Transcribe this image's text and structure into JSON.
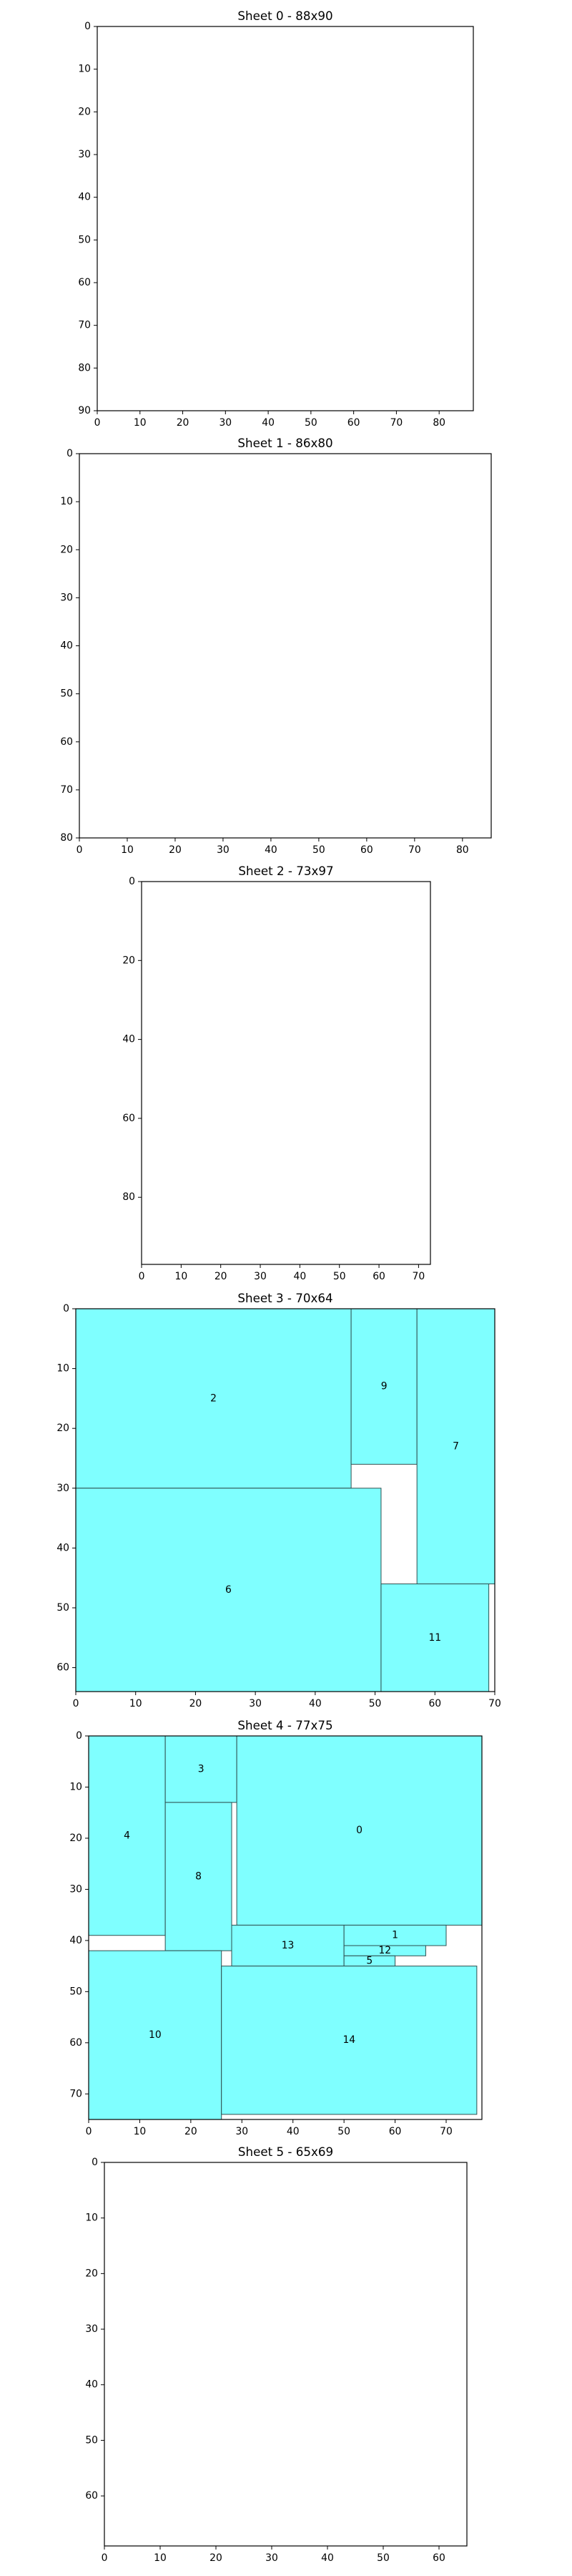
{
  "chart_data": [
    {
      "type": "sheet-packing",
      "title": "Sheet 0 - 88x90",
      "width": 88,
      "height": 90,
      "xlim": [
        0,
        88
      ],
      "ylim": [
        90,
        0
      ],
      "xticks": [
        "0",
        "10",
        "20",
        "30",
        "40",
        "50",
        "60",
        "70",
        "80"
      ],
      "yticks": [
        "0",
        "10",
        "20",
        "30",
        "40",
        "50",
        "60",
        "70",
        "80",
        "90"
      ],
      "pieces": []
    },
    {
      "type": "sheet-packing",
      "title": "Sheet 1 - 86x80",
      "width": 86,
      "height": 80,
      "xlim": [
        0,
        86
      ],
      "ylim": [
        80,
        0
      ],
      "xticks": [
        "0",
        "10",
        "20",
        "30",
        "40",
        "50",
        "60",
        "70",
        "80"
      ],
      "yticks": [
        "0",
        "10",
        "20",
        "30",
        "40",
        "50",
        "60",
        "70",
        "80"
      ],
      "pieces": []
    },
    {
      "type": "sheet-packing",
      "title": "Sheet 2 - 73x97",
      "width": 73,
      "height": 97,
      "xlim": [
        0,
        73
      ],
      "ylim": [
        97,
        0
      ],
      "xticks": [
        "0",
        "10",
        "20",
        "30",
        "40",
        "50",
        "60",
        "70"
      ],
      "yticks": [
        "0",
        "20",
        "40",
        "60",
        "80"
      ],
      "pieces": []
    },
    {
      "type": "sheet-packing",
      "title": "Sheet 3 - 70x64",
      "width": 70,
      "height": 64,
      "xlim": [
        0,
        70
      ],
      "ylim": [
        64,
        0
      ],
      "xticks": [
        "0",
        "10",
        "20",
        "30",
        "40",
        "50",
        "60",
        "70"
      ],
      "yticks": [
        "0",
        "10",
        "20",
        "30",
        "40",
        "50",
        "60"
      ],
      "pieces": [
        {
          "id": "2",
          "x": 0,
          "y": 0,
          "w": 46,
          "h": 30
        },
        {
          "id": "9",
          "x": 46,
          "y": 0,
          "w": 11,
          "h": 26
        },
        {
          "id": "7",
          "x": 57,
          "y": 0,
          "w": 13,
          "h": 46
        },
        {
          "id": "6",
          "x": 0,
          "y": 30,
          "w": 51,
          "h": 34
        },
        {
          "id": "11",
          "x": 51,
          "y": 46,
          "w": 18,
          "h": 18
        }
      ]
    },
    {
      "type": "sheet-packing",
      "title": "Sheet 4 - 77x75",
      "width": 77,
      "height": 75,
      "xlim": [
        0,
        77
      ],
      "ylim": [
        75,
        0
      ],
      "xticks": [
        "0",
        "10",
        "20",
        "30",
        "40",
        "50",
        "60",
        "70"
      ],
      "yticks": [
        "0",
        "10",
        "20",
        "30",
        "40",
        "50",
        "60",
        "70"
      ],
      "pieces": [
        {
          "id": "4",
          "x": 0,
          "y": 0,
          "w": 15,
          "h": 39
        },
        {
          "id": "3",
          "x": 15,
          "y": 0,
          "w": 14,
          "h": 13
        },
        {
          "id": "8",
          "x": 15,
          "y": 13,
          "w": 13,
          "h": 29
        },
        {
          "id": "0",
          "x": 29,
          "y": 0,
          "w": 48,
          "h": 37
        },
        {
          "id": "13",
          "x": 28,
          "y": 37,
          "w": 22,
          "h": 8
        },
        {
          "id": "1",
          "x": 50,
          "y": 37,
          "w": 20,
          "h": 4
        },
        {
          "id": "12",
          "x": 50,
          "y": 41,
          "w": 16,
          "h": 2
        },
        {
          "id": "5",
          "x": 50,
          "y": 43,
          "w": 10,
          "h": 2
        },
        {
          "id": "10",
          "x": 0,
          "y": 42,
          "w": 26,
          "h": 33
        },
        {
          "id": "14",
          "x": 26,
          "y": 45,
          "w": 50,
          "h": 29
        }
      ]
    },
    {
      "type": "sheet-packing",
      "title": "Sheet 5 - 65x69",
      "width": 65,
      "height": 69,
      "xlim": [
        0,
        65
      ],
      "ylim": [
        69,
        0
      ],
      "xticks": [
        "0",
        "10",
        "20",
        "30",
        "40",
        "50",
        "60"
      ],
      "yticks": [
        "0",
        "10",
        "20",
        "30",
        "40",
        "50",
        "60"
      ],
      "pieces": []
    }
  ],
  "colors": {
    "piece_fill": "#7fffff",
    "piece_edge": "#2f4f4f",
    "axes": "#000000"
  }
}
